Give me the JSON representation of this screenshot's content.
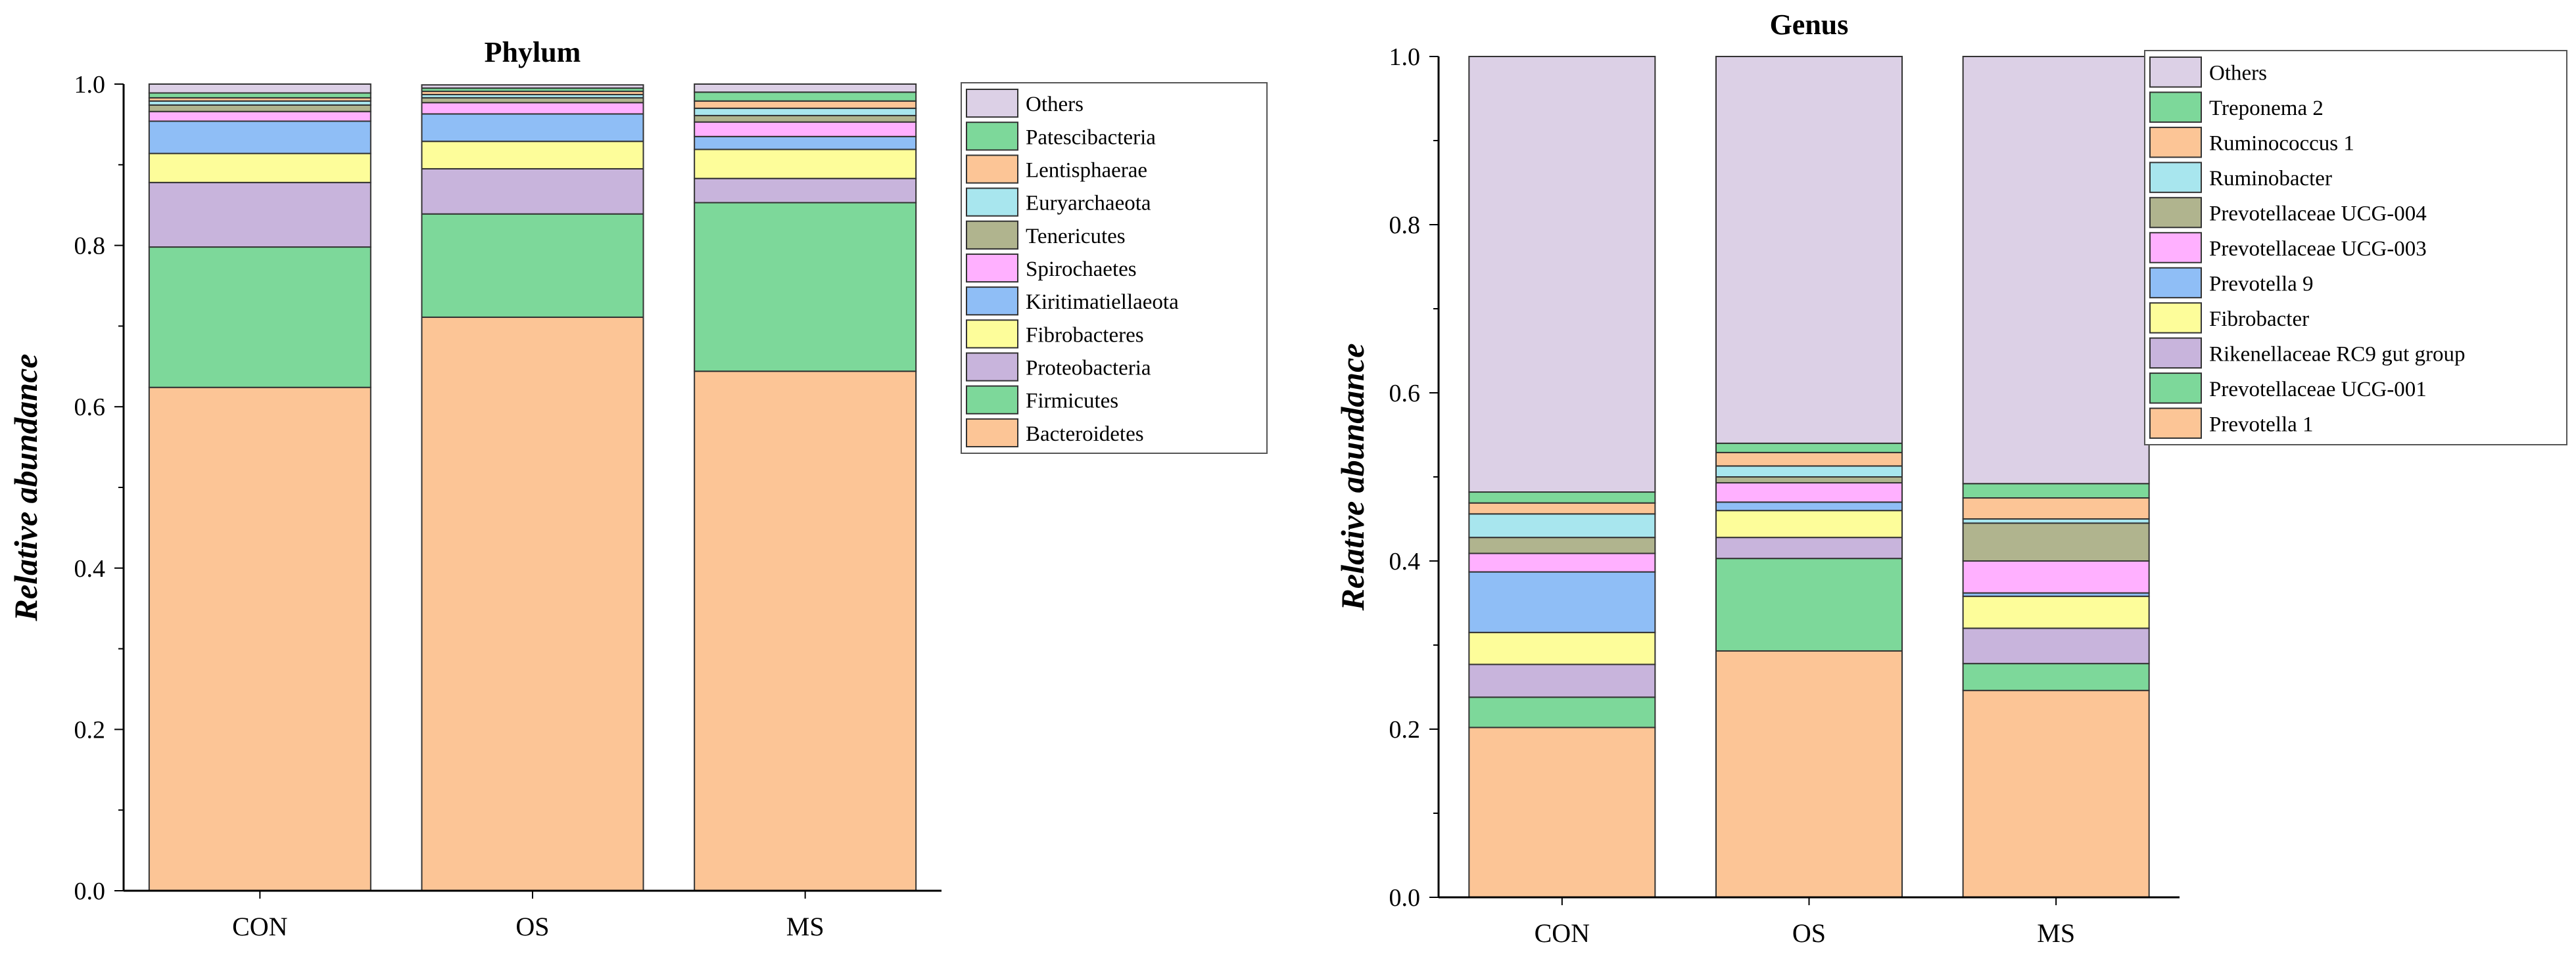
{
  "colors": {
    "Others": "#dcd0e6",
    "Patescibacteria": "#7dd89a",
    "Lentisphaerae": "#fcc596",
    "Euryarchaeota": "#a8e6ee",
    "Tenericutes": "#b0b48e",
    "Spirochaetes": "#ffb0ff",
    "Kiritimatiellaeota": "#8fbef6",
    "Fibrobacteres": "#fdfd9a",
    "Proteobacteria": "#c8b4dc",
    "Firmicutes": "#7dd89a",
    "Bacteroidetes": "#fcc596",
    "Treponema 2": "#7dd89a",
    "Ruminococcus 1": "#fcc596",
    "Ruminobacter": "#a8e6ee",
    "Prevotellaceae UCG-004": "#b0b48e",
    "Prevotellaceae UCG-003": "#ffb0ff",
    "Prevotella 9": "#8fbef6",
    "Fibrobacter": "#fdfd9a",
    "Rikenellaceae RC9 gut group": "#c8b4dc",
    "Prevotellaceae UCG-001": "#7dd89a",
    "Prevotella 1": "#fcc596",
    "Others_genus": "#dcd0e6"
  },
  "chart_data": [
    {
      "type": "bar",
      "stacked": true,
      "title": "Phylum",
      "xlabel": "",
      "ylabel": "Relative abundance",
      "ylim": [
        0,
        1.0
      ],
      "yticks": [
        "0.0",
        "0.2",
        "0.4",
        "0.6",
        "0.8",
        "1.0"
      ],
      "categories": [
        "CON",
        "OS",
        "MS"
      ],
      "legend_position": "right",
      "series": [
        {
          "name": "Bacteroidetes",
          "values": [
            0.624,
            0.711,
            0.644
          ]
        },
        {
          "name": "Firmicutes",
          "values": [
            0.174,
            0.128,
            0.209
          ]
        },
        {
          "name": "Proteobacteria",
          "values": [
            0.08,
            0.056,
            0.03
          ]
        },
        {
          "name": "Fibrobacteres",
          "values": [
            0.036,
            0.034,
            0.036
          ]
        },
        {
          "name": "Kiritimatiellaeota",
          "values": [
            0.04,
            0.034,
            0.016
          ]
        },
        {
          "name": "Spirochaetes",
          "values": [
            0.012,
            0.014,
            0.018
          ]
        },
        {
          "name": "Tenericutes",
          "values": [
            0.008,
            0.006,
            0.008
          ]
        },
        {
          "name": "Euryarchaeota",
          "values": [
            0.005,
            0.004,
            0.009
          ]
        },
        {
          "name": "Lentisphaerae",
          "values": [
            0.004,
            0.004,
            0.009
          ]
        },
        {
          "name": "Patescibacteria",
          "values": [
            0.006,
            0.004,
            0.011
          ]
        },
        {
          "name": "Others",
          "values": [
            0.011,
            0.004,
            0.01
          ]
        }
      ]
    },
    {
      "type": "bar",
      "stacked": true,
      "title": "Genus",
      "xlabel": "",
      "ylabel": "Relative abundance",
      "ylim": [
        0,
        1.0
      ],
      "yticks": [
        "0.0",
        "0.2",
        "0.4",
        "0.6",
        "0.8",
        "1.0"
      ],
      "categories": [
        "CON",
        "OS",
        "MS"
      ],
      "legend_position": "right",
      "series": [
        {
          "name": "Prevotella 1",
          "values": [
            0.202,
            0.293,
            0.246
          ]
        },
        {
          "name": "Prevotellaceae UCG-001",
          "values": [
            0.036,
            0.11,
            0.032
          ]
        },
        {
          "name": "Rikenellaceae RC9 gut group",
          "values": [
            0.039,
            0.025,
            0.042
          ]
        },
        {
          "name": "Fibrobacter",
          "values": [
            0.038,
            0.032,
            0.038
          ]
        },
        {
          "name": "Prevotella 9",
          "values": [
            0.072,
            0.01,
            0.004
          ]
        },
        {
          "name": "Prevotellaceae UCG-003",
          "values": [
            0.022,
            0.023,
            0.038
          ]
        },
        {
          "name": "Prevotellaceae UCG-004",
          "values": [
            0.019,
            0.007,
            0.045
          ]
        },
        {
          "name": "Ruminobacter",
          "values": [
            0.028,
            0.013,
            0.005
          ]
        },
        {
          "name": "Ruminococcus 1",
          "values": [
            0.013,
            0.016,
            0.025
          ]
        },
        {
          "name": "Treponema 2",
          "values": [
            0.013,
            0.011,
            0.017
          ]
        },
        {
          "name": "Others",
          "values": [
            0.518,
            0.46,
            0.508
          ]
        }
      ]
    }
  ]
}
